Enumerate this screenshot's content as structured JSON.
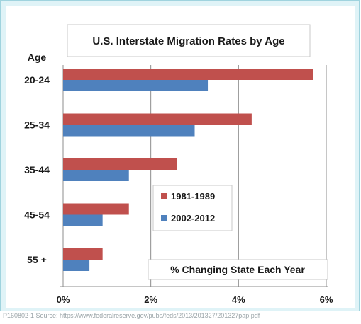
{
  "chart_data": {
    "type": "bar",
    "orientation": "horizontal",
    "title": "U.S. Interstate Migration Rates by Age",
    "category_axis_label": "Age",
    "value_axis_annotation": "% Changing State Each Year",
    "categories": [
      "20-24",
      "25-34",
      "35-44",
      "45-54",
      "55 +"
    ],
    "series": [
      {
        "name": "1981-1989",
        "color": "#c0504d",
        "values": [
          5.7,
          4.3,
          2.6,
          1.5,
          0.9
        ]
      },
      {
        "name": "2002-2012",
        "color": "#4f81bd",
        "values": [
          3.3,
          3.0,
          1.5,
          0.9,
          0.6
        ]
      }
    ],
    "xlim": [
      0,
      6
    ],
    "x_ticks": [
      "0%",
      "2%",
      "4%",
      "6%"
    ],
    "grid": "vertical",
    "legend_position": "center-right inside plot"
  },
  "source_text": "P160802-1 Source: https://www.federalreserve.gov/pubs/feds/2013/201327/201327pap.pdf"
}
